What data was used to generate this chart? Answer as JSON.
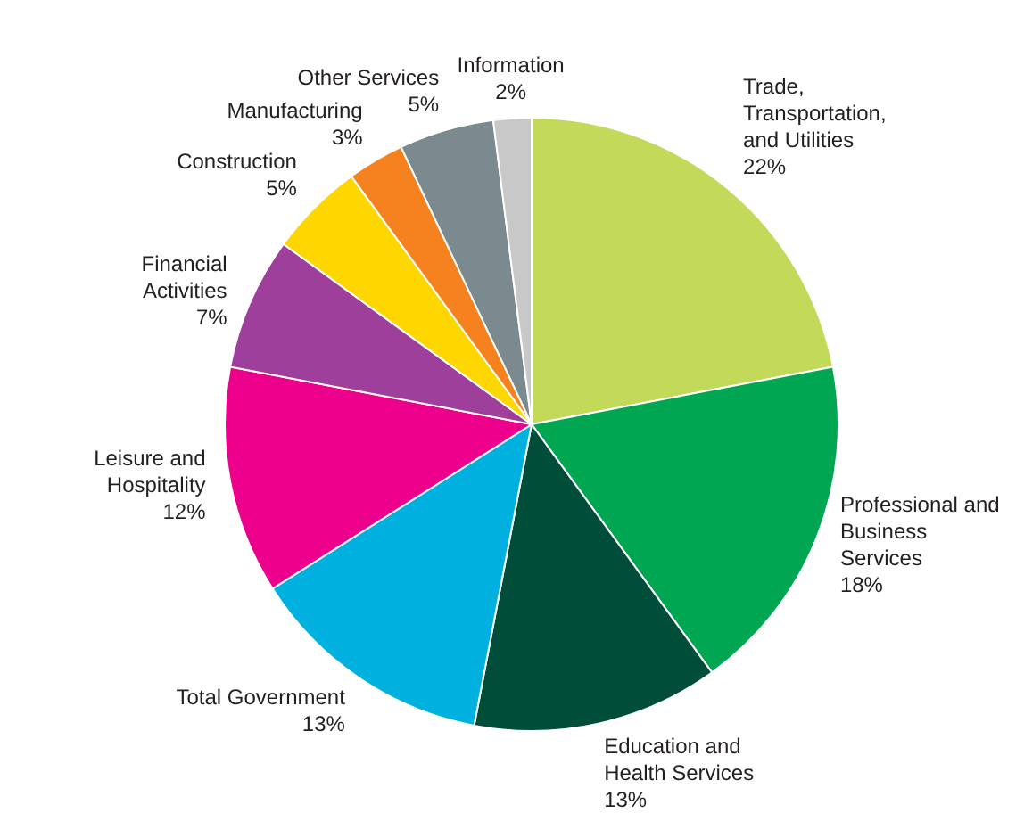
{
  "chart_data": {
    "type": "pie",
    "categories": [
      "Trade, Transportation, and Utilities",
      "Professional and Business Services",
      "Education and Health Services",
      "Total Government",
      "Leisure and Hospitality",
      "Financial Activities",
      "Construction",
      "Manufacturing",
      "Other Services",
      "Information"
    ],
    "values": [
      22,
      18,
      13,
      13,
      12,
      7,
      5,
      3,
      5,
      2
    ],
    "value_labels": [
      "22%",
      "18%",
      "13%",
      "13%",
      "12%",
      "7%",
      "5%",
      "3%",
      "5%",
      "2%"
    ],
    "colors": [
      "#c2d95a",
      "#00a651",
      "#004d3a",
      "#00b0de",
      "#ec008c",
      "#9e3f9b",
      "#ffd700",
      "#f5821f",
      "#7b8a8f",
      "#c8c8c8"
    ],
    "legend": false
  }
}
